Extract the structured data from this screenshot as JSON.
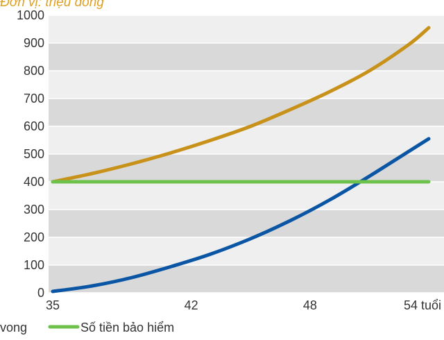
{
  "chart_data": {
    "type": "line",
    "title": "",
    "unit_label": "Đơn vị: triệu đồng",
    "xlabel": "",
    "ylabel": "",
    "x_ticks": [
      {
        "value": 35,
        "label": "35"
      },
      {
        "value": 42,
        "label": "42"
      },
      {
        "value": 48,
        "label": "48"
      },
      {
        "value": 54,
        "label": "54 tuổi"
      }
    ],
    "xlim": [
      35,
      54
    ],
    "ylim": [
      0,
      1000
    ],
    "y_ticks": [
      0,
      100,
      200,
      300,
      400,
      500,
      600,
      700,
      800,
      900,
      1000
    ],
    "grid": "alternating horizontal bands",
    "series": [
      {
        "name": "",
        "color": "#c8921a",
        "x": [
          35,
          37,
          39,
          41,
          43,
          45,
          47,
          49,
          51,
          53,
          54
        ],
        "y": [
          400,
          430,
          465,
          505,
          550,
          600,
          660,
          725,
          800,
          895,
          955
        ]
      },
      {
        "name": "",
        "color": "#0a55a4",
        "x": [
          35,
          37,
          39,
          41,
          43,
          45,
          47,
          49,
          51,
          53,
          54
        ],
        "y": [
          5,
          25,
          55,
          95,
          140,
          195,
          260,
          335,
          420,
          510,
          555
        ]
      },
      {
        "name": "Số tiền bảo hiểm",
        "color": "#6cc24a",
        "x": [
          35,
          54
        ],
        "y": [
          400,
          400
        ]
      }
    ],
    "legend": {
      "placement": "bottom-left",
      "items": [
        {
          "label": "vong",
          "color": "#0a55a4",
          "cropped": true
        },
        {
          "label": "Số tiền bảo hiểm",
          "color": "#6cc24a"
        }
      ]
    },
    "colors": {
      "band_dark": "#d9d9d9",
      "band_light": "#efefef",
      "grid_line": "#ffffff"
    }
  }
}
